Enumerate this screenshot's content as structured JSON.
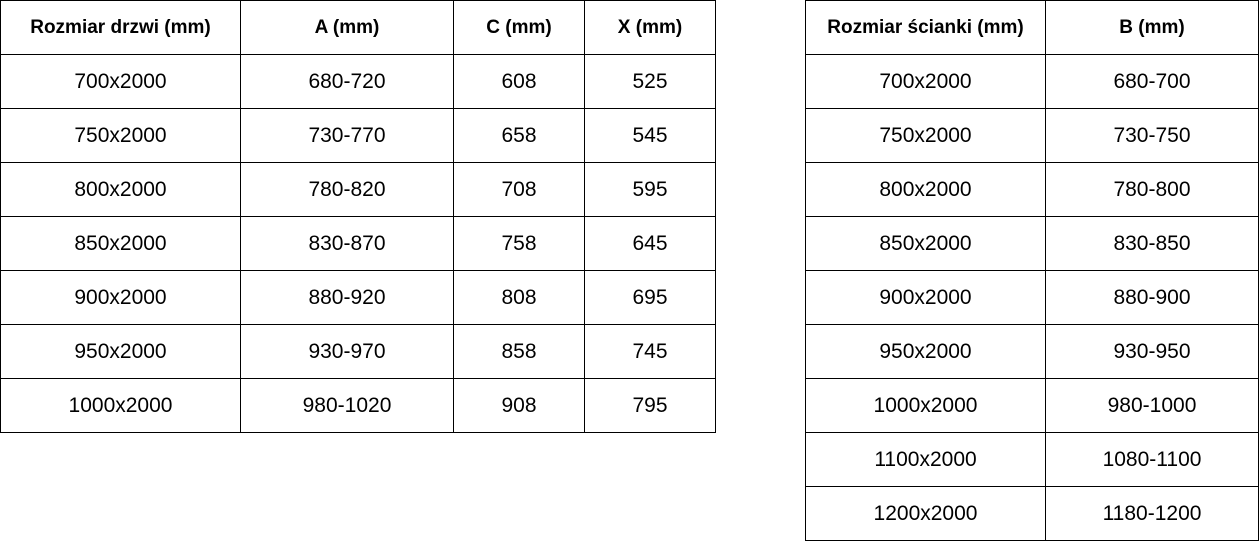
{
  "door_table": {
    "headers": [
      "Rozmiar drzwi (mm)",
      "A (mm)",
      "C (mm)",
      "X (mm)"
    ],
    "rows": [
      [
        "700x2000",
        "680-720",
        "608",
        "525"
      ],
      [
        "750x2000",
        "730-770",
        "658",
        "545"
      ],
      [
        "800x2000",
        "780-820",
        "708",
        "595"
      ],
      [
        "850x2000",
        "830-870",
        "758",
        "645"
      ],
      [
        "900x2000",
        "880-920",
        "808",
        "695"
      ],
      [
        "950x2000",
        "930-970",
        "858",
        "745"
      ],
      [
        "1000x2000",
        "980-1020",
        "908",
        "795"
      ]
    ]
  },
  "wall_table": {
    "headers": [
      "Rozmiar ścianki (mm)",
      "B (mm)"
    ],
    "rows": [
      [
        "700x2000",
        "680-700"
      ],
      [
        "750x2000",
        "730-750"
      ],
      [
        "800x2000",
        "780-800"
      ],
      [
        "850x2000",
        "830-850"
      ],
      [
        "900x2000",
        "880-900"
      ],
      [
        "950x2000",
        "930-950"
      ],
      [
        "1000x2000",
        "980-1000"
      ],
      [
        "1100x2000",
        "1080-1100"
      ],
      [
        "1200x2000",
        "1180-1200"
      ]
    ]
  }
}
